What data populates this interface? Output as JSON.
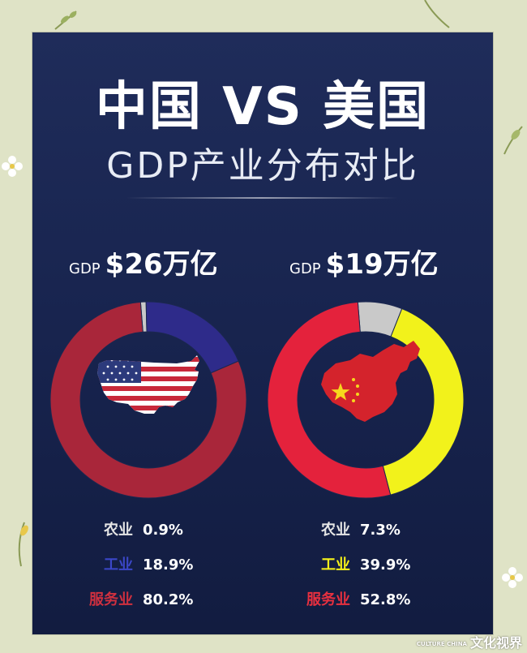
{
  "poster": {
    "title": "中国 VS 美国",
    "subtitle": "GDP产业分布对比"
  },
  "us": {
    "gdp_prefix": "GDP",
    "gdp_value": "$26万亿",
    "legend": [
      {
        "label": "农业",
        "value": "0.9%"
      },
      {
        "label": "工业",
        "value": "18.9%"
      },
      {
        "label": "服务业",
        "value": "80.2%"
      }
    ]
  },
  "cn": {
    "gdp_prefix": "GDP",
    "gdp_value": "$19万亿",
    "legend": [
      {
        "label": "农业",
        "value": "7.3%"
      },
      {
        "label": "工业",
        "value": "39.9%"
      },
      {
        "label": "服务业",
        "value": "52.8%"
      }
    ]
  },
  "chart_data": [
    {
      "type": "pie",
      "donut": true,
      "title": "$26万亿",
      "categories": [
        "农业",
        "工业",
        "服务业"
      ],
      "values": [
        0.9,
        18.9,
        80.2
      ],
      "colors": [
        "#c9c9c9",
        "#2e2b8a",
        "#a9263a"
      ]
    },
    {
      "type": "pie",
      "donut": true,
      "title": "$19万亿",
      "categories": [
        "农业",
        "工业",
        "服务业"
      ],
      "values": [
        7.3,
        39.9,
        52.8
      ],
      "colors": [
        "#c9c9c9",
        "#f2f21b",
        "#e4223c"
      ]
    }
  ],
  "legend_colors": {
    "us": [
      "#e6e6e6",
      "#3b47c8",
      "#d0303f"
    ],
    "cn": [
      "#e6e6e6",
      "#f7f21a",
      "#e8303f"
    ]
  },
  "watermark": {
    "small": "CULTURE CHINA",
    "text": "文化视界"
  }
}
